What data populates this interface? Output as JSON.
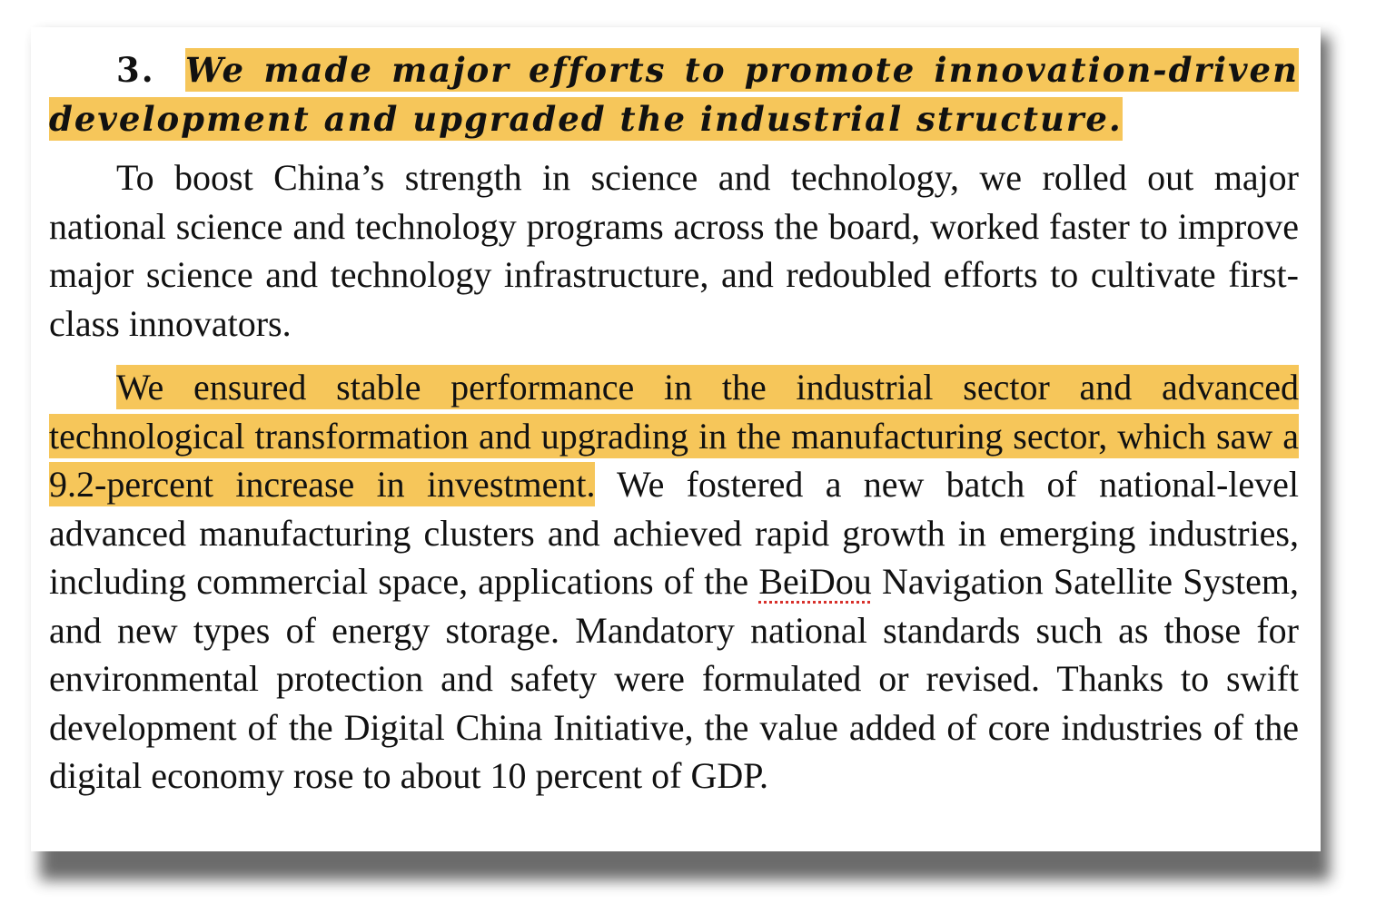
{
  "section": {
    "number": "3.",
    "heading": "We made major efforts to promote innovation-driven development and upgraded the industrial structure."
  },
  "paragraph1": {
    "text": "To boost China’s strength in science and technology, we rolled out major national science and technology programs across the board, worked faster to improve major science and technology infrastructure, and redoubled efforts to cultivate first-class innovators."
  },
  "paragraph2": {
    "highlighted": "We ensured stable performance in the industrial sector and advanced technological transformation and upgrading in the manufacturing sector, which saw a 9.2-percent increase in investment.",
    "text_a": " We fostered a new batch of national-level advanced manufacturing clusters and achieved rapid growth in emerging industries, including commercial space, applications of the ",
    "spellcheck_word": "BeiDou",
    "text_b": " Navigation Satellite System, and new types of energy storage. Mandatory national standards such as those for environmental protection and safety were formulated or revised. Thanks to swift development of the Digital China Initiative, the value added of core industries of the digital economy rose to about 10 percent of GDP."
  },
  "colors": {
    "highlight": "#f6c65a",
    "spellcheck_underline": "#d8302b"
  }
}
